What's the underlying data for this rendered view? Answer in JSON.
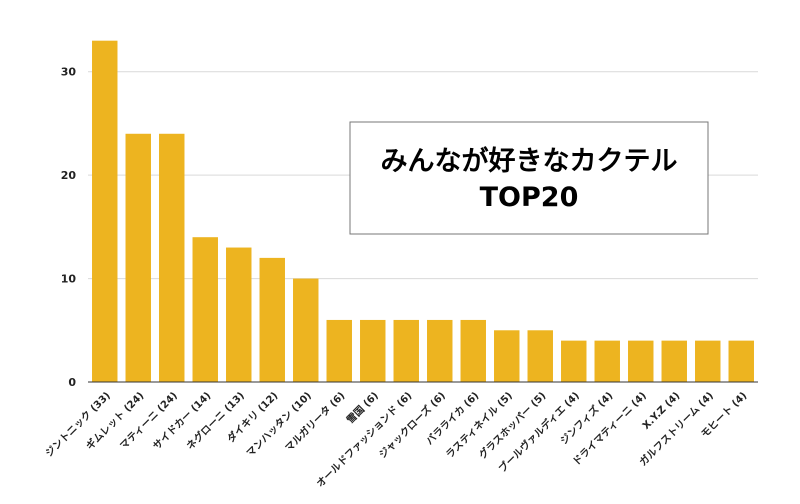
{
  "colors": {
    "bar": "#EDB420",
    "gridline": "#d9d9d9",
    "axis": "#333333",
    "title_box_border": "#777777"
  },
  "chart_data": {
    "type": "bar",
    "title_lines": [
      "みんなが好きなカクテル",
      "TOP20"
    ],
    "categories": [
      "ジントニック (33)",
      "ギムレット (24)",
      "マティーニ (24)",
      "サイドカー (14)",
      "ネグローニ (13)",
      "ダイキリ (12)",
      "マンハッタン (10)",
      "マルガリータ (6)",
      "雪国 (6)",
      "オールドファッションド (6)",
      "ジャックローズ (6)",
      "バラライカ (6)",
      "ラスティネイル (5)",
      "グラスホッパー (5)",
      "ブールヴァルディエ (4)",
      "ジンフィズ (4)",
      "ドライマティーニ (4)",
      "X.Y.Z (4)",
      "ガルフストリーム (4)",
      "モヒート (4)"
    ],
    "values": [
      33,
      24,
      24,
      14,
      13,
      12,
      10,
      6,
      6,
      6,
      6,
      6,
      5,
      5,
      4,
      4,
      4,
      4,
      4,
      4
    ],
    "ylim": [
      0,
      35
    ],
    "yticks": [
      0,
      10,
      20,
      30
    ],
    "grid": true,
    "legend": "none"
  }
}
